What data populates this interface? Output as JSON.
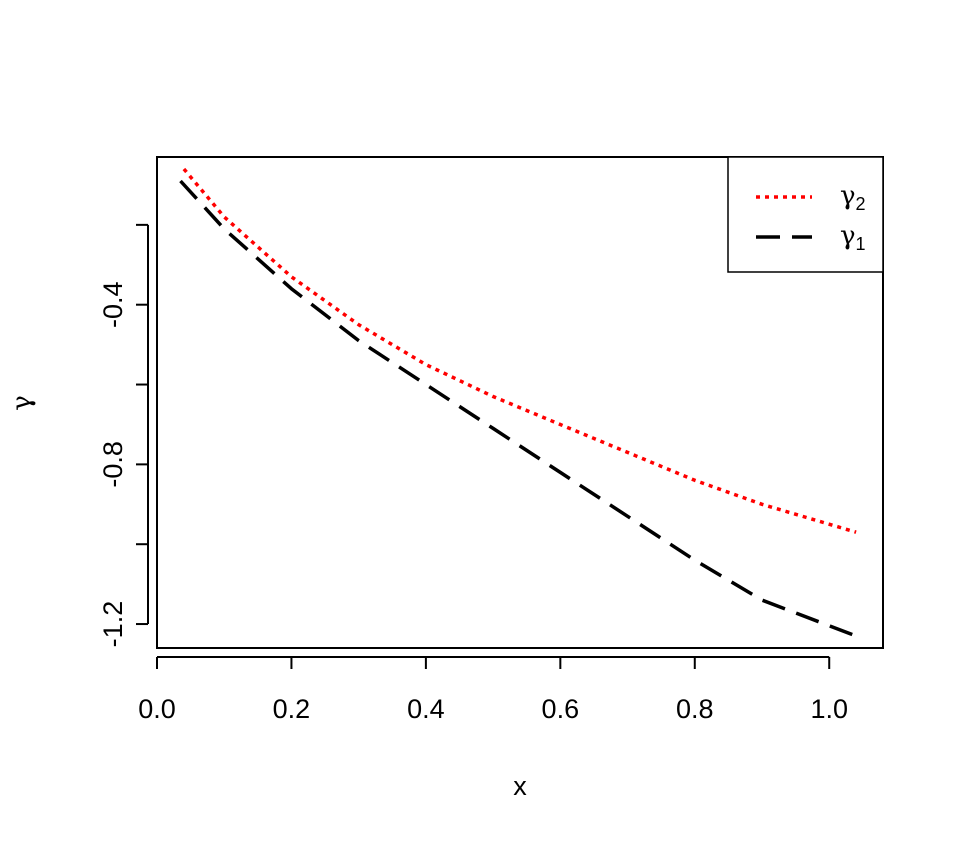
{
  "chart_data": {
    "type": "line",
    "title": "",
    "xlabel": "x",
    "ylabel": "γ",
    "xlim": [
      0.0,
      1.08
    ],
    "ylim": [
      -1.26,
      -0.03
    ],
    "x_ticks": [
      0.0,
      0.2,
      0.4,
      0.6,
      0.8,
      1.0
    ],
    "x_tick_labels": [
      "0.0",
      "0.2",
      "0.4",
      "0.6",
      "0.8",
      "1.0"
    ],
    "y_ticks": [
      -1.2,
      -1.0,
      -0.8,
      -0.6,
      -0.4,
      -0.2
    ],
    "y_tick_labels": [
      "-1.2",
      "",
      "-0.8",
      "",
      "-0.4",
      ""
    ],
    "grid": false,
    "legend_position": "top-right",
    "series": [
      {
        "name": "γ2",
        "legend_symbol": "γ",
        "legend_sub": "2",
        "color": "#ff0000",
        "style": "dotted",
        "x": [
          0.04,
          0.1,
          0.2,
          0.3,
          0.4,
          0.5,
          0.6,
          0.7,
          0.8,
          0.9,
          1.04
        ],
        "y": [
          -0.06,
          -0.18,
          -0.33,
          -0.45,
          -0.55,
          -0.63,
          -0.7,
          -0.77,
          -0.84,
          -0.9,
          -0.97
        ]
      },
      {
        "name": "γ1",
        "legend_symbol": "γ",
        "legend_sub": "1",
        "color": "#000000",
        "style": "dashed",
        "x": [
          0.035,
          0.1,
          0.2,
          0.3,
          0.4,
          0.5,
          0.6,
          0.7,
          0.8,
          0.9,
          1.04
        ],
        "y": [
          -0.09,
          -0.21,
          -0.36,
          -0.49,
          -0.6,
          -0.71,
          -0.82,
          -0.93,
          -1.04,
          -1.14,
          -1.23
        ]
      }
    ]
  }
}
